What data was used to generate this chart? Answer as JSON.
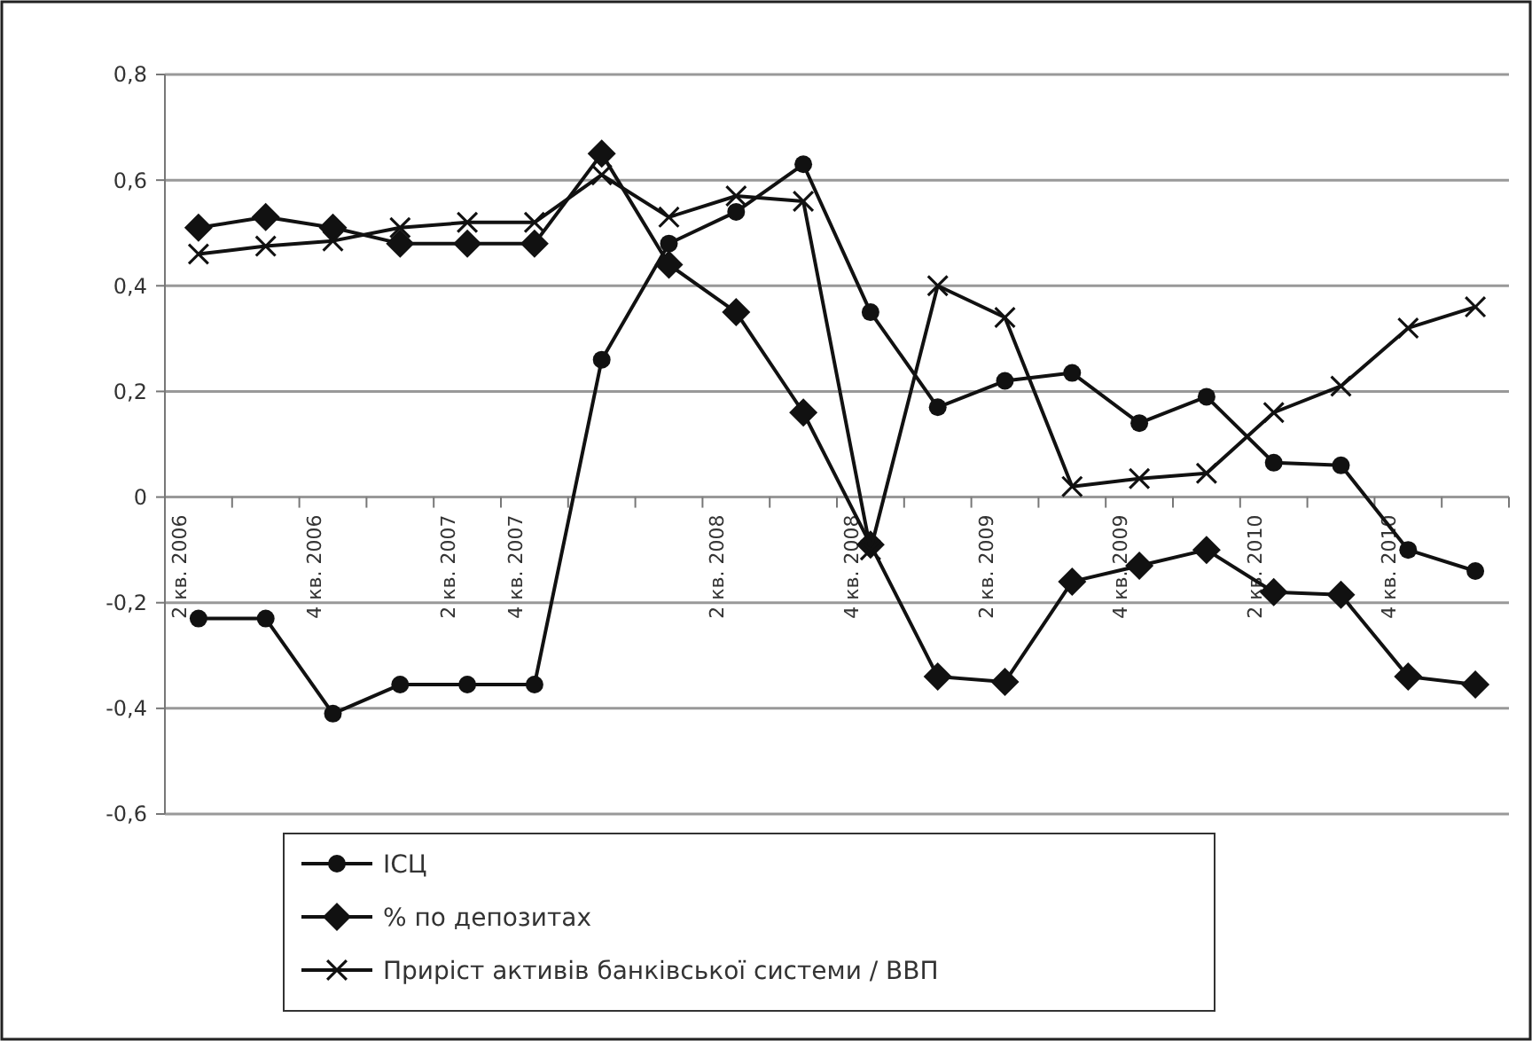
{
  "chart_data": {
    "type": "line",
    "categories": [
      "2 кв. 2006",
      null,
      "4 кв. 2006",
      null,
      "2 кв. 2007",
      "4 кв. 2007",
      null,
      null,
      "2 кв. 2008",
      null,
      "4 кв. 2008",
      null,
      "2 кв. 2009",
      null,
      "4 кв. 2009",
      null,
      "2 кв. 2010",
      null,
      "4 кв. 2010",
      null
    ],
    "series": [
      {
        "name": "ІСЦ",
        "color": "#111111",
        "marker": "circle",
        "values": [
          -0.23,
          -0.23,
          -0.41,
          -0.355,
          -0.355,
          -0.355,
          0.26,
          0.48,
          0.54,
          0.63,
          0.35,
          0.17,
          0.22,
          0.235,
          0.14,
          0.19,
          0.065,
          0.06,
          -0.1,
          -0.14
        ]
      },
      {
        "name": "% по депозитах",
        "color": "#111111",
        "marker": "diamond",
        "values": [
          0.51,
          0.53,
          0.51,
          0.48,
          0.48,
          0.48,
          0.65,
          0.44,
          0.35,
          0.16,
          -0.09,
          -0.34,
          -0.35,
          -0.16,
          -0.13,
          -0.1,
          -0.18,
          -0.185,
          -0.34,
          -0.355
        ]
      },
      {
        "name": "Приріст активів банківської системи / ВВП",
        "color": "#111111",
        "marker": "cross",
        "values": [
          0.46,
          0.475,
          0.485,
          0.51,
          0.52,
          0.52,
          0.61,
          0.53,
          0.57,
          0.56,
          -0.1,
          0.4,
          0.34,
          0.02,
          0.035,
          0.045,
          0.16,
          0.21,
          0.32,
          0.36
        ]
      }
    ],
    "ylim": [
      -0.6,
      0.8
    ],
    "yticks": [
      {
        "value": -0.6,
        "label": "-0,6"
      },
      {
        "value": -0.4,
        "label": "-0,4"
      },
      {
        "value": -0.2,
        "label": "-0,2"
      },
      {
        "value": 0,
        "label": "0"
      },
      {
        "value": 0.2,
        "label": "0,2"
      },
      {
        "value": 0.4,
        "label": "0,4"
      },
      {
        "value": 0.6,
        "label": "0,6"
      },
      {
        "value": 0.8,
        "label": "0,8"
      }
    ],
    "grid": "y",
    "legend": "bottom"
  }
}
